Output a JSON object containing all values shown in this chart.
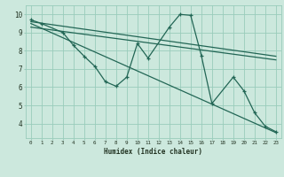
{
  "xlabel": "Humidex (Indice chaleur)",
  "bg_color": "#cce8dd",
  "grid_color": "#99ccbb",
  "line_color": "#226655",
  "xlim": [
    -0.5,
    23.5
  ],
  "ylim": [
    3.2,
    10.5
  ],
  "yticks": [
    4,
    5,
    6,
    7,
    8,
    9,
    10
  ],
  "xticks": [
    0,
    1,
    2,
    3,
    4,
    5,
    6,
    7,
    8,
    9,
    10,
    11,
    12,
    13,
    14,
    15,
    16,
    17,
    18,
    19,
    20,
    21,
    22,
    23
  ],
  "line1_x": [
    0,
    1,
    3,
    4,
    5,
    6,
    7,
    8,
    9,
    10,
    11,
    13,
    14,
    15,
    16,
    17,
    19,
    20,
    21,
    22,
    23
  ],
  "line1_y": [
    9.7,
    9.5,
    9.0,
    8.3,
    7.7,
    7.15,
    6.3,
    6.05,
    6.55,
    8.4,
    7.6,
    9.3,
    10.0,
    9.95,
    7.75,
    5.1,
    6.55,
    5.8,
    4.6,
    3.85,
    3.55
  ],
  "line2_x": [
    0,
    23
  ],
  "line2_y": [
    9.6,
    7.7
  ],
  "line3_x": [
    0,
    23
  ],
  "line3_y": [
    9.3,
    7.5
  ],
  "line4_x": [
    0,
    23
  ],
  "line4_y": [
    9.5,
    3.5
  ]
}
